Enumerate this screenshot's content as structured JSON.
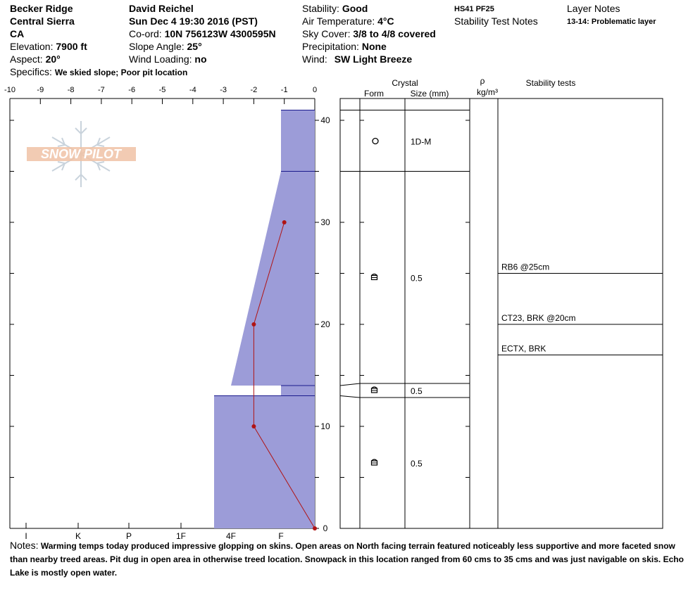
{
  "header": {
    "location": "Becker Ridge",
    "range": "Central Sierra",
    "state": "CA",
    "elevation_label": "Elevation:",
    "elevation_value": "7900 ft",
    "aspect_label": "Aspect:",
    "aspect_value": "20°",
    "specifics_label": "Specifics:",
    "specifics_value": "We skied slope; Poor pit location",
    "observer": "David Reichel",
    "datetime": "Sun Dec 4 19:30 2016 (PST)",
    "coord_label": "Co-ord:",
    "coord_value": "10N 756123W 4300595N",
    "slope_label": "Slope Angle:",
    "slope_value": "25°",
    "wind_loading_label": "Wind Loading:",
    "wind_loading_value": "no",
    "stability_label": "Stability:",
    "stability_value": "Good",
    "air_temp_label": "Air Temperature:",
    "air_temp_value": "4°C",
    "sky_label": "Sky Cover:",
    "sky_value": "3/8 to 4/8 covered",
    "precip_label": "Precipitation:",
    "precip_value": "None",
    "wind_label": "Wind:",
    "wind_value": "SW Light Breeze",
    "hs_pf": "HS41 PF25",
    "stability_test_notes": "Stability Test Notes",
    "layer_notes_title": "Layer Notes",
    "layer_note": "13-14: Problematic layer"
  },
  "logo": {
    "text": "SNOW PILOT"
  },
  "columns": {
    "crystal": "Crystal",
    "form": "Form",
    "size": "Size (mm)",
    "rho": "ρ",
    "density_unit": "kg/m³",
    "stability_tests": "Stability tests"
  },
  "notes": {
    "label": "Notes:",
    "text": "Warming temps today produced impressive glopping on skins. Open areas on North facing terrain featured noticeably less supportive and more faceted snow than nearby treed areas. Pit dug in open area in otherwise treed location.  Snowpack in this location ranged from 60 cms to 35 cms and was just navigable on skis. Echo Lake is mostly open water."
  },
  "colors": {
    "hardness_fill": "#9c9cd8",
    "hardness_edge": "#1a1a8c",
    "temperature": "#b01414",
    "logo": "#f0c2a6"
  },
  "chart_data": {
    "type": "area",
    "depth_axis": {
      "label": "",
      "range": [
        0,
        42
      ],
      "ticks": [
        0,
        10,
        20,
        30,
        40
      ]
    },
    "temperature_axis": {
      "unit": "°C",
      "range": [
        -10,
        0
      ],
      "ticks": [
        "-10",
        "-9",
        "-8",
        "-7",
        "-6",
        "-5",
        "-4",
        "-3",
        "-2",
        "-1",
        "0"
      ]
    },
    "hardness_axis": {
      "ticks": [
        "I",
        "K",
        "P",
        "1F",
        "4F",
        "F"
      ]
    },
    "hardness_profile": [
      {
        "bottom": 35,
        "top": 41,
        "hardness_bottom": "F",
        "hardness_top": "F"
      },
      {
        "bottom": 14,
        "top": 35,
        "hardness_bottom": "4F+",
        "hardness_top": "F"
      },
      {
        "bottom": 13,
        "top": 14,
        "hardness_bottom": "F",
        "hardness_top": "F"
      },
      {
        "bottom": 0,
        "top": 13,
        "hardness_bottom": "4F-",
        "hardness_top": "4F-"
      }
    ],
    "temperature_profile": [
      {
        "depth": 30,
        "temp": -1
      },
      {
        "depth": 20,
        "temp": -2
      },
      {
        "depth": 10,
        "temp": -2
      },
      {
        "depth": 0,
        "temp": 0
      }
    ],
    "layers": [
      {
        "top": 41,
        "bottom": 35,
        "form": "precipitation-particles",
        "size": "1D-M"
      },
      {
        "top": 35,
        "bottom": 14,
        "form": "faceted-rounded",
        "size": "0.5"
      },
      {
        "top": 14,
        "bottom": 13,
        "form": "faceted-rounded",
        "size": "0.5"
      },
      {
        "top": 13,
        "bottom": 0,
        "form": "faceted-rounded",
        "size": "0.5"
      }
    ],
    "stability_tests": [
      {
        "depth": 25,
        "label": "RB6 @25cm"
      },
      {
        "depth": 20,
        "label": "CT23, BRK @20cm"
      },
      {
        "depth": 17,
        "label": "ECTX, BRK"
      }
    ]
  }
}
